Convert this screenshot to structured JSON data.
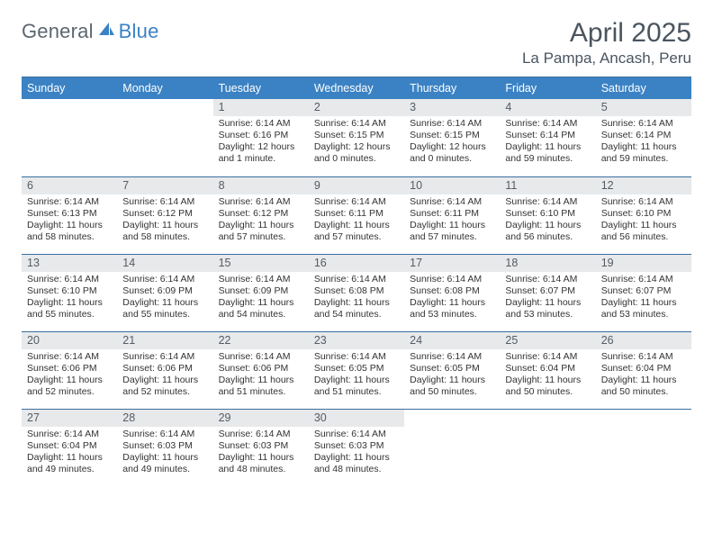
{
  "logo": {
    "word1": "General",
    "word2": "Blue"
  },
  "title": "April 2025",
  "location": "La Pampa, Ancash, Peru",
  "colors": {
    "header_bg": "#3b82c4",
    "daynum_bg": "#e7e9eb",
    "rule": "#3a6f9e",
    "text": "#333333",
    "muted": "#5b6670"
  },
  "fonts": {
    "title_size": 30,
    "location_size": 17,
    "dow_size": 12,
    "cell_size": 10.5
  },
  "days_of_week": [
    "Sunday",
    "Monday",
    "Tuesday",
    "Wednesday",
    "Thursday",
    "Friday",
    "Saturday"
  ],
  "weeks": [
    [
      {
        "n": "",
        "sunrise": "",
        "sunset": "",
        "daylight": ""
      },
      {
        "n": "",
        "sunrise": "",
        "sunset": "",
        "daylight": ""
      },
      {
        "n": "1",
        "sunrise": "Sunrise: 6:14 AM",
        "sunset": "Sunset: 6:16 PM",
        "daylight": "Daylight: 12 hours and 1 minute."
      },
      {
        "n": "2",
        "sunrise": "Sunrise: 6:14 AM",
        "sunset": "Sunset: 6:15 PM",
        "daylight": "Daylight: 12 hours and 0 minutes."
      },
      {
        "n": "3",
        "sunrise": "Sunrise: 6:14 AM",
        "sunset": "Sunset: 6:15 PM",
        "daylight": "Daylight: 12 hours and 0 minutes."
      },
      {
        "n": "4",
        "sunrise": "Sunrise: 6:14 AM",
        "sunset": "Sunset: 6:14 PM",
        "daylight": "Daylight: 11 hours and 59 minutes."
      },
      {
        "n": "5",
        "sunrise": "Sunrise: 6:14 AM",
        "sunset": "Sunset: 6:14 PM",
        "daylight": "Daylight: 11 hours and 59 minutes."
      }
    ],
    [
      {
        "n": "6",
        "sunrise": "Sunrise: 6:14 AM",
        "sunset": "Sunset: 6:13 PM",
        "daylight": "Daylight: 11 hours and 58 minutes."
      },
      {
        "n": "7",
        "sunrise": "Sunrise: 6:14 AM",
        "sunset": "Sunset: 6:12 PM",
        "daylight": "Daylight: 11 hours and 58 minutes."
      },
      {
        "n": "8",
        "sunrise": "Sunrise: 6:14 AM",
        "sunset": "Sunset: 6:12 PM",
        "daylight": "Daylight: 11 hours and 57 minutes."
      },
      {
        "n": "9",
        "sunrise": "Sunrise: 6:14 AM",
        "sunset": "Sunset: 6:11 PM",
        "daylight": "Daylight: 11 hours and 57 minutes."
      },
      {
        "n": "10",
        "sunrise": "Sunrise: 6:14 AM",
        "sunset": "Sunset: 6:11 PM",
        "daylight": "Daylight: 11 hours and 57 minutes."
      },
      {
        "n": "11",
        "sunrise": "Sunrise: 6:14 AM",
        "sunset": "Sunset: 6:10 PM",
        "daylight": "Daylight: 11 hours and 56 minutes."
      },
      {
        "n": "12",
        "sunrise": "Sunrise: 6:14 AM",
        "sunset": "Sunset: 6:10 PM",
        "daylight": "Daylight: 11 hours and 56 minutes."
      }
    ],
    [
      {
        "n": "13",
        "sunrise": "Sunrise: 6:14 AM",
        "sunset": "Sunset: 6:10 PM",
        "daylight": "Daylight: 11 hours and 55 minutes."
      },
      {
        "n": "14",
        "sunrise": "Sunrise: 6:14 AM",
        "sunset": "Sunset: 6:09 PM",
        "daylight": "Daylight: 11 hours and 55 minutes."
      },
      {
        "n": "15",
        "sunrise": "Sunrise: 6:14 AM",
        "sunset": "Sunset: 6:09 PM",
        "daylight": "Daylight: 11 hours and 54 minutes."
      },
      {
        "n": "16",
        "sunrise": "Sunrise: 6:14 AM",
        "sunset": "Sunset: 6:08 PM",
        "daylight": "Daylight: 11 hours and 54 minutes."
      },
      {
        "n": "17",
        "sunrise": "Sunrise: 6:14 AM",
        "sunset": "Sunset: 6:08 PM",
        "daylight": "Daylight: 11 hours and 53 minutes."
      },
      {
        "n": "18",
        "sunrise": "Sunrise: 6:14 AM",
        "sunset": "Sunset: 6:07 PM",
        "daylight": "Daylight: 11 hours and 53 minutes."
      },
      {
        "n": "19",
        "sunrise": "Sunrise: 6:14 AM",
        "sunset": "Sunset: 6:07 PM",
        "daylight": "Daylight: 11 hours and 53 minutes."
      }
    ],
    [
      {
        "n": "20",
        "sunrise": "Sunrise: 6:14 AM",
        "sunset": "Sunset: 6:06 PM",
        "daylight": "Daylight: 11 hours and 52 minutes."
      },
      {
        "n": "21",
        "sunrise": "Sunrise: 6:14 AM",
        "sunset": "Sunset: 6:06 PM",
        "daylight": "Daylight: 11 hours and 52 minutes."
      },
      {
        "n": "22",
        "sunrise": "Sunrise: 6:14 AM",
        "sunset": "Sunset: 6:06 PM",
        "daylight": "Daylight: 11 hours and 51 minutes."
      },
      {
        "n": "23",
        "sunrise": "Sunrise: 6:14 AM",
        "sunset": "Sunset: 6:05 PM",
        "daylight": "Daylight: 11 hours and 51 minutes."
      },
      {
        "n": "24",
        "sunrise": "Sunrise: 6:14 AM",
        "sunset": "Sunset: 6:05 PM",
        "daylight": "Daylight: 11 hours and 50 minutes."
      },
      {
        "n": "25",
        "sunrise": "Sunrise: 6:14 AM",
        "sunset": "Sunset: 6:04 PM",
        "daylight": "Daylight: 11 hours and 50 minutes."
      },
      {
        "n": "26",
        "sunrise": "Sunrise: 6:14 AM",
        "sunset": "Sunset: 6:04 PM",
        "daylight": "Daylight: 11 hours and 50 minutes."
      }
    ],
    [
      {
        "n": "27",
        "sunrise": "Sunrise: 6:14 AM",
        "sunset": "Sunset: 6:04 PM",
        "daylight": "Daylight: 11 hours and 49 minutes."
      },
      {
        "n": "28",
        "sunrise": "Sunrise: 6:14 AM",
        "sunset": "Sunset: 6:03 PM",
        "daylight": "Daylight: 11 hours and 49 minutes."
      },
      {
        "n": "29",
        "sunrise": "Sunrise: 6:14 AM",
        "sunset": "Sunset: 6:03 PM",
        "daylight": "Daylight: 11 hours and 48 minutes."
      },
      {
        "n": "30",
        "sunrise": "Sunrise: 6:14 AM",
        "sunset": "Sunset: 6:03 PM",
        "daylight": "Daylight: 11 hours and 48 minutes."
      },
      {
        "n": "",
        "sunrise": "",
        "sunset": "",
        "daylight": ""
      },
      {
        "n": "",
        "sunrise": "",
        "sunset": "",
        "daylight": ""
      },
      {
        "n": "",
        "sunrise": "",
        "sunset": "",
        "daylight": ""
      }
    ]
  ]
}
